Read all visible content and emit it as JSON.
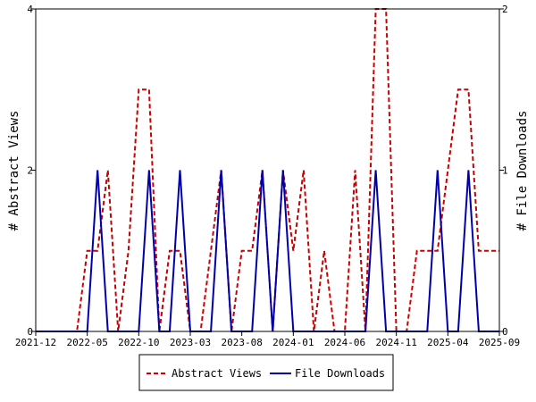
{
  "chart_data": {
    "type": "line",
    "xlabel": "",
    "x_tick_labels": [
      "2021-12",
      "2022-05",
      "2022-10",
      "2023-03",
      "2023-08",
      "2024-01",
      "2024-06",
      "2024-11",
      "2025-04",
      "2025-09"
    ],
    "x": [
      "2021-12",
      "2022-01",
      "2022-02",
      "2022-03",
      "2022-04",
      "2022-05",
      "2022-06",
      "2022-07",
      "2022-08",
      "2022-09",
      "2022-10",
      "2022-11",
      "2022-12",
      "2023-01",
      "2023-02",
      "2023-03",
      "2023-04",
      "2023-05",
      "2023-06",
      "2023-07",
      "2023-08",
      "2023-09",
      "2023-10",
      "2023-11",
      "2023-12",
      "2024-01",
      "2024-02",
      "2024-03",
      "2024-04",
      "2024-05",
      "2024-06",
      "2024-07",
      "2024-08",
      "2024-09",
      "2024-10",
      "2024-11",
      "2024-12",
      "2025-01",
      "2025-02",
      "2025-03",
      "2025-04",
      "2025-05",
      "2025-06",
      "2025-07",
      "2025-08",
      "2025-09"
    ],
    "y_left": {
      "label": "# Abstract Views",
      "ylim": [
        0,
        4
      ],
      "ticks": [
        "0",
        "2",
        "4"
      ]
    },
    "y_right": {
      "label": "# File Downloads",
      "ylim": [
        0,
        2
      ],
      "ticks": [
        "0",
        "1",
        "2"
      ]
    },
    "series": [
      {
        "name": "Abstract Views",
        "axis": "left",
        "color": "#cc0000",
        "dash": "dashed",
        "values": [
          0,
          0,
          0,
          0,
          0,
          1,
          1,
          2,
          0,
          1,
          3,
          3,
          0,
          1,
          1,
          0,
          0,
          1,
          2,
          0,
          1,
          1,
          2,
          0,
          2,
          1,
          2,
          0,
          1,
          0,
          0,
          2,
          0,
          4,
          4,
          0,
          0,
          1,
          1,
          1,
          2,
          3,
          3,
          1,
          1,
          1
        ]
      },
      {
        "name": "File Downloads",
        "axis": "right",
        "color": "#0000aa",
        "dash": "solid",
        "values": [
          0,
          0,
          0,
          0,
          0,
          0,
          1,
          0,
          0,
          0,
          0,
          1,
          0,
          0,
          1,
          0,
          0,
          0,
          1,
          0,
          0,
          0,
          1,
          0,
          1,
          0,
          0,
          0,
          0,
          0,
          0,
          0,
          0,
          1,
          0,
          0,
          0,
          0,
          0,
          1,
          0,
          0,
          1,
          0,
          0,
          0
        ]
      }
    ],
    "legend_position": "bottom",
    "grid": false
  }
}
